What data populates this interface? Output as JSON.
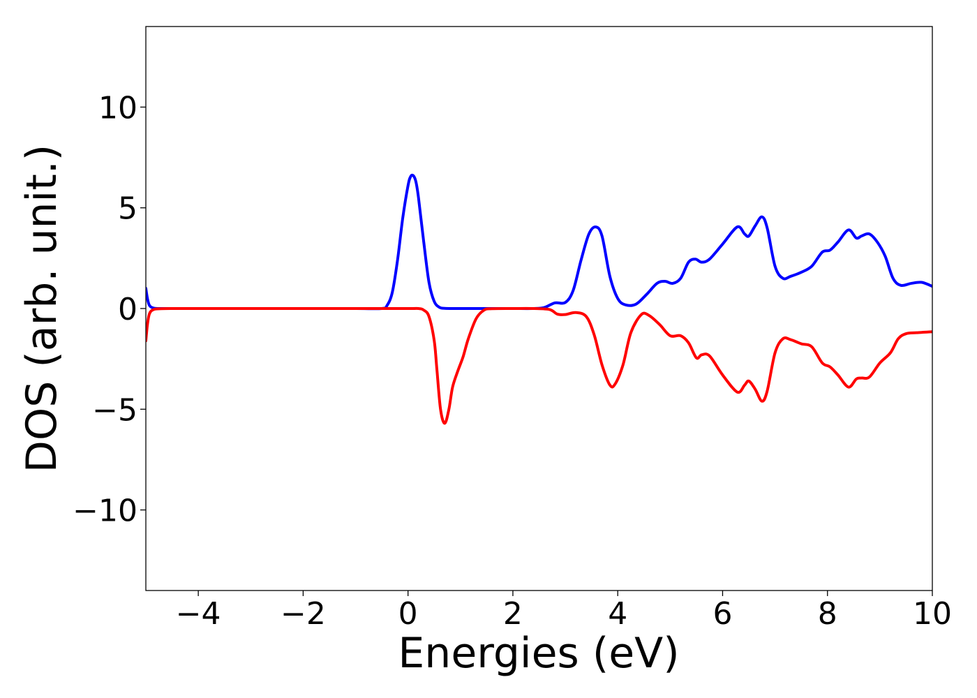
{
  "chart_data": {
    "type": "line",
    "title": "",
    "xlabel": "Energies (eV)",
    "ylabel": "DOS (arb. unit.)",
    "xlim": [
      -5,
      10
    ],
    "ylim": [
      -14,
      14
    ],
    "grid": false,
    "legend": "none",
    "x_ticks": [
      -4,
      -2,
      0,
      2,
      4,
      6,
      8,
      10
    ],
    "x_tick_labels": [
      "−4",
      "−2",
      "0",
      "2",
      "4",
      "6",
      "8",
      "10"
    ],
    "y_ticks": [
      -10,
      -5,
      0,
      5,
      10
    ],
    "y_tick_labels": [
      "−10",
      "−5",
      "0",
      "5",
      "10"
    ],
    "series": [
      {
        "color": "#0000ff",
        "x": [
          -5.0,
          -4.97,
          -4.93,
          -4.85,
          -4.7,
          -4.5,
          -4.0,
          -3.0,
          -2.0,
          -1.0,
          -0.5,
          -0.4,
          -0.3,
          -0.2,
          -0.1,
          0.0,
          0.05,
          0.1,
          0.15,
          0.2,
          0.3,
          0.4,
          0.5,
          0.6,
          0.7,
          0.9,
          1.2,
          1.6,
          2.0,
          2.4,
          2.6,
          2.8,
          3.0,
          3.15,
          3.3,
          3.45,
          3.58,
          3.7,
          3.85,
          4.0,
          4.15,
          4.35,
          4.55,
          4.75,
          4.9,
          5.05,
          5.2,
          5.35,
          5.48,
          5.6,
          5.75,
          6.0,
          6.28,
          6.42,
          6.5,
          6.62,
          6.75,
          6.85,
          7.0,
          7.15,
          7.3,
          7.5,
          7.7,
          7.9,
          8.05,
          8.2,
          8.4,
          8.55,
          8.65,
          8.8,
          8.95,
          9.1,
          9.25,
          9.4,
          9.6,
          9.8,
          10.0
        ],
        "y": [
          1.0,
          0.5,
          0.15,
          0.02,
          0.0,
          0.0,
          0.0,
          0.0,
          0.0,
          0.0,
          0.0,
          0.15,
          0.8,
          2.4,
          4.5,
          6.1,
          6.55,
          6.6,
          6.3,
          5.5,
          3.3,
          1.3,
          0.35,
          0.06,
          0.01,
          0.0,
          0.0,
          0.0,
          0.0,
          0.0,
          0.05,
          0.28,
          0.3,
          0.9,
          2.4,
          3.7,
          4.05,
          3.6,
          1.6,
          0.5,
          0.18,
          0.22,
          0.7,
          1.25,
          1.35,
          1.25,
          1.5,
          2.3,
          2.45,
          2.3,
          2.45,
          3.2,
          4.05,
          3.7,
          3.6,
          4.1,
          4.55,
          4.0,
          2.1,
          1.5,
          1.6,
          1.8,
          2.1,
          2.8,
          2.9,
          3.3,
          3.9,
          3.5,
          3.6,
          3.7,
          3.3,
          2.6,
          1.5,
          1.15,
          1.25,
          1.3,
          1.1
        ]
      },
      {
        "color": "#ff0000",
        "x": [
          -5.0,
          -4.97,
          -4.93,
          -4.85,
          -4.7,
          -4.5,
          -4.0,
          -3.0,
          -2.0,
          -1.0,
          0.0,
          0.2,
          0.3,
          0.4,
          0.5,
          0.55,
          0.62,
          0.7,
          0.78,
          0.85,
          0.95,
          1.05,
          1.15,
          1.3,
          1.45,
          1.6,
          2.0,
          2.4,
          2.7,
          2.85,
          3.0,
          3.2,
          3.4,
          3.55,
          3.7,
          3.85,
          3.95,
          4.1,
          4.25,
          4.45,
          4.6,
          4.8,
          5.0,
          5.2,
          5.35,
          5.5,
          5.6,
          5.75,
          6.0,
          6.28,
          6.42,
          6.5,
          6.62,
          6.75,
          6.85,
          7.0,
          7.15,
          7.3,
          7.5,
          7.7,
          7.9,
          8.05,
          8.2,
          8.4,
          8.55,
          8.65,
          8.8,
          9.0,
          9.2,
          9.35,
          9.5,
          9.7,
          10.0
        ],
        "y": [
          -1.6,
          -0.8,
          -0.25,
          -0.05,
          -0.01,
          0.0,
          0.0,
          0.0,
          0.0,
          0.0,
          0.0,
          0.0,
          -0.08,
          -0.4,
          -1.6,
          -3.0,
          -5.0,
          -5.7,
          -5.0,
          -3.9,
          -3.1,
          -2.4,
          -1.5,
          -0.5,
          -0.08,
          -0.01,
          0.0,
          0.0,
          -0.05,
          -0.28,
          -0.3,
          -0.2,
          -0.4,
          -1.3,
          -2.8,
          -3.8,
          -3.75,
          -2.8,
          -1.2,
          -0.3,
          -0.35,
          -0.8,
          -1.35,
          -1.35,
          -1.7,
          -2.45,
          -2.3,
          -2.35,
          -3.3,
          -4.15,
          -3.8,
          -3.6,
          -4.0,
          -4.6,
          -4.1,
          -2.2,
          -1.5,
          -1.55,
          -1.75,
          -1.9,
          -2.7,
          -2.9,
          -3.3,
          -3.9,
          -3.5,
          -3.45,
          -3.4,
          -2.7,
          -2.2,
          -1.5,
          -1.25,
          -1.2,
          -1.15
        ]
      }
    ]
  }
}
